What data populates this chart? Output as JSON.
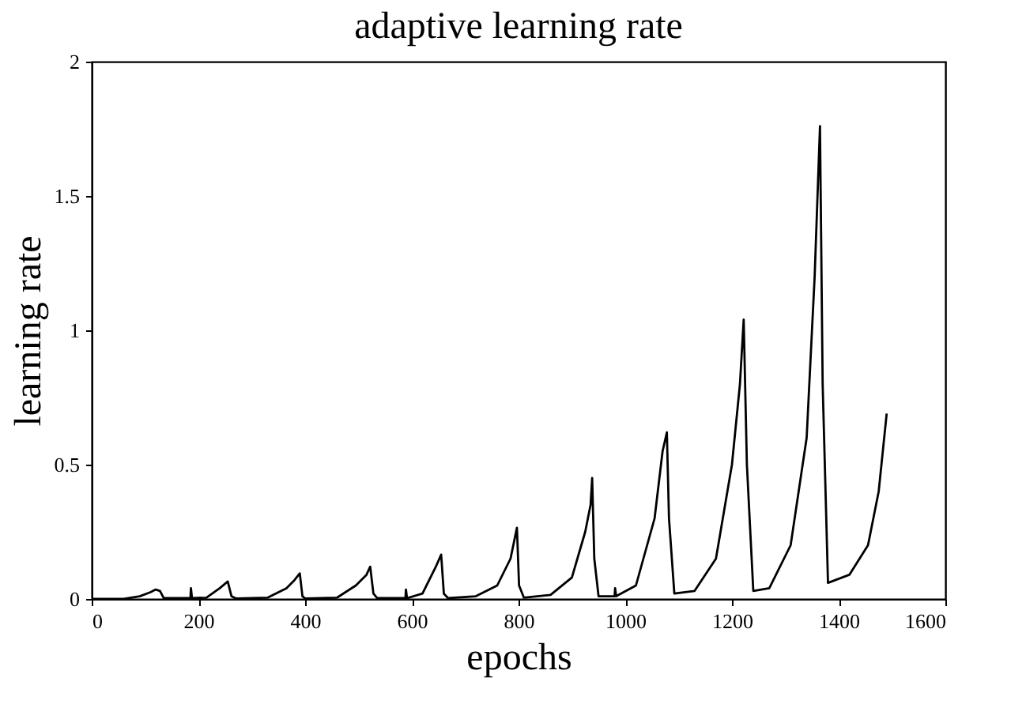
{
  "chart_data": {
    "type": "line",
    "title": "adaptive learning rate",
    "xlabel": "epochs",
    "ylabel": "learning rate",
    "xlim": [
      0,
      1600
    ],
    "xticks": [
      0,
      200,
      400,
      600,
      800,
      1000,
      1200,
      1400,
      1600
    ],
    "ylim": [
      0,
      2
    ],
    "yticks": [
      0,
      0.5,
      1,
      1.5,
      2
    ],
    "grid": false,
    "marker": "none",
    "line_style": "solid",
    "series": [
      {
        "color": "#000000",
        "x": [
          0,
          60,
          90,
          110,
          120,
          128,
          135,
          185,
          186,
          188,
          215,
          240,
          255,
          262,
          270,
          330,
          365,
          380,
          390,
          395,
          400,
          460,
          495,
          515,
          522,
          528,
          535,
          588,
          589,
          591,
          620,
          645,
          655,
          660,
          668,
          720,
          760,
          785,
          797,
          801,
          810,
          860,
          900,
          925,
          935,
          938,
          942,
          950,
          980,
          981,
          983,
          1020,
          1055,
          1070,
          1078,
          1082,
          1092,
          1130,
          1170,
          1200,
          1215,
          1222,
          1228,
          1240,
          1270,
          1310,
          1340,
          1355,
          1365,
          1370,
          1380,
          1420,
          1455,
          1475,
          1490
        ],
        "values": [
          0,
          0,
          0.01,
          0.025,
          0.035,
          0.03,
          0.003,
          0.003,
          0.04,
          0.003,
          0.005,
          0.04,
          0.065,
          0.01,
          0.002,
          0.005,
          0.04,
          0.07,
          0.095,
          0.01,
          0.002,
          0.005,
          0.05,
          0.09,
          0.12,
          0.02,
          0.003,
          0.003,
          0.035,
          0.003,
          0.02,
          0.12,
          0.165,
          0.02,
          0.003,
          0.01,
          0.05,
          0.15,
          0.265,
          0.05,
          0.005,
          0.015,
          0.08,
          0.25,
          0.35,
          0.45,
          0.15,
          0.01,
          0.01,
          0.04,
          0.01,
          0.05,
          0.3,
          0.55,
          0.62,
          0.3,
          0.02,
          0.03,
          0.15,
          0.5,
          0.8,
          1.04,
          0.5,
          0.03,
          0.04,
          0.2,
          0.6,
          1.2,
          1.76,
          0.8,
          0.06,
          0.09,
          0.2,
          0.4,
          0.69
        ]
      }
    ]
  }
}
